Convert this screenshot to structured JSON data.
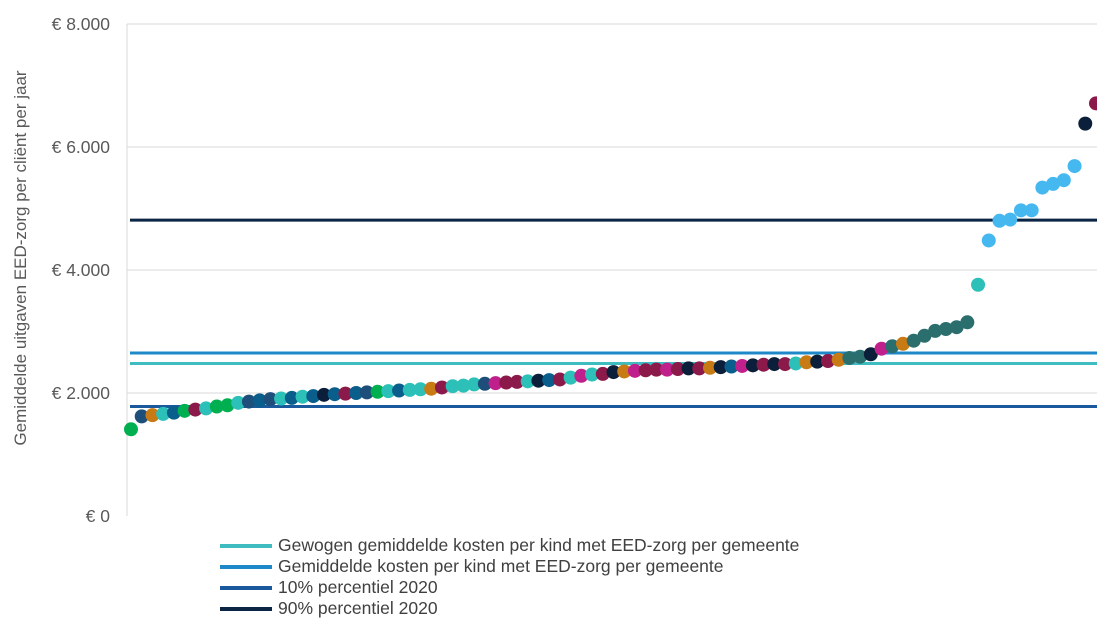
{
  "chart_data": {
    "type": "scatter",
    "title": "",
    "xlabel": "",
    "ylabel": "Gemiddelde  uitgaven EED-zorg per cliënt per jaar",
    "ylim": [
      0,
      8000
    ],
    "yticks": [
      {
        "value": 0,
        "label": "€ 0"
      },
      {
        "value": 2000,
        "label": "€ 2.000"
      },
      {
        "value": 4000,
        "label": "€ 4.000"
      },
      {
        "value": 6000,
        "label": "€ 6.000"
      },
      {
        "value": 8000,
        "label": "€ 8.000"
      }
    ],
    "grid": true,
    "legend_position": "bottom",
    "reference_lines": [
      {
        "name": "Gewogen gemiddelde kosten per kind met EED-zorg per gemeente",
        "value": 2480,
        "color": "#3fbcc0"
      },
      {
        "name": "Gemiddelde kosten per kind met EED-zorg per gemeente",
        "value": 2650,
        "color": "#1e88c8"
      },
      {
        "name": "10% percentiel 2020",
        "value": 1780,
        "color": "#1a5a9c"
      },
      {
        "name": "90% percentiel 2020",
        "value": 4810,
        "color": "#0b2545"
      }
    ],
    "point_colors": [
      "#00b050",
      "#1d4f7a",
      "#c87a14",
      "#2cc0b8",
      "#0a5e8c",
      "#8b1a4a",
      "#c0208c",
      "#0b1f3a",
      "#2b6e6e",
      "#46b8f0"
    ],
    "points": [
      {
        "y": 1410,
        "c": 0
      },
      {
        "y": 1620,
        "c": 1
      },
      {
        "y": 1640,
        "c": 2
      },
      {
        "y": 1660,
        "c": 3
      },
      {
        "y": 1680,
        "c": 4
      },
      {
        "y": 1710,
        "c": 0
      },
      {
        "y": 1730,
        "c": 5
      },
      {
        "y": 1750,
        "c": 3
      },
      {
        "y": 1780,
        "c": 0
      },
      {
        "y": 1800,
        "c": 0
      },
      {
        "y": 1840,
        "c": 3
      },
      {
        "y": 1860,
        "c": 1
      },
      {
        "y": 1880,
        "c": 4
      },
      {
        "y": 1900,
        "c": 1
      },
      {
        "y": 1910,
        "c": 3
      },
      {
        "y": 1920,
        "c": 4
      },
      {
        "y": 1940,
        "c": 3
      },
      {
        "y": 1950,
        "c": 4
      },
      {
        "y": 1970,
        "c": 7
      },
      {
        "y": 1980,
        "c": 4
      },
      {
        "y": 1990,
        "c": 5
      },
      {
        "y": 2000,
        "c": 4
      },
      {
        "y": 2010,
        "c": 1
      },
      {
        "y": 2020,
        "c": 0
      },
      {
        "y": 2030,
        "c": 3
      },
      {
        "y": 2040,
        "c": 4
      },
      {
        "y": 2050,
        "c": 3
      },
      {
        "y": 2060,
        "c": 3
      },
      {
        "y": 2070,
        "c": 2
      },
      {
        "y": 2090,
        "c": 5
      },
      {
        "y": 2110,
        "c": 3
      },
      {
        "y": 2120,
        "c": 3
      },
      {
        "y": 2140,
        "c": 3
      },
      {
        "y": 2150,
        "c": 1
      },
      {
        "y": 2160,
        "c": 6
      },
      {
        "y": 2170,
        "c": 5
      },
      {
        "y": 2180,
        "c": 5
      },
      {
        "y": 2190,
        "c": 3
      },
      {
        "y": 2200,
        "c": 7
      },
      {
        "y": 2210,
        "c": 4
      },
      {
        "y": 2220,
        "c": 5
      },
      {
        "y": 2250,
        "c": 3
      },
      {
        "y": 2280,
        "c": 6
      },
      {
        "y": 2300,
        "c": 3
      },
      {
        "y": 2310,
        "c": 5
      },
      {
        "y": 2340,
        "c": 7
      },
      {
        "y": 2350,
        "c": 2
      },
      {
        "y": 2360,
        "c": 6
      },
      {
        "y": 2370,
        "c": 5
      },
      {
        "y": 2380,
        "c": 5
      },
      {
        "y": 2380,
        "c": 6
      },
      {
        "y": 2390,
        "c": 5
      },
      {
        "y": 2400,
        "c": 7
      },
      {
        "y": 2400,
        "c": 5
      },
      {
        "y": 2410,
        "c": 2
      },
      {
        "y": 2420,
        "c": 7
      },
      {
        "y": 2430,
        "c": 4
      },
      {
        "y": 2440,
        "c": 6
      },
      {
        "y": 2450,
        "c": 7
      },
      {
        "y": 2460,
        "c": 5
      },
      {
        "y": 2470,
        "c": 7
      },
      {
        "y": 2470,
        "c": 5
      },
      {
        "y": 2480,
        "c": 3
      },
      {
        "y": 2500,
        "c": 2
      },
      {
        "y": 2510,
        "c": 7
      },
      {
        "y": 2520,
        "c": 5
      },
      {
        "y": 2540,
        "c": 2
      },
      {
        "y": 2570,
        "c": 8
      },
      {
        "y": 2590,
        "c": 8
      },
      {
        "y": 2630,
        "c": 7
      },
      {
        "y": 2720,
        "c": 6
      },
      {
        "y": 2760,
        "c": 8
      },
      {
        "y": 2800,
        "c": 2
      },
      {
        "y": 2850,
        "c": 8
      },
      {
        "y": 2930,
        "c": 8
      },
      {
        "y": 3010,
        "c": 8
      },
      {
        "y": 3040,
        "c": 8
      },
      {
        "y": 3070,
        "c": 8
      },
      {
        "y": 3150,
        "c": 8
      },
      {
        "y": 3760,
        "c": 3
      },
      {
        "y": 4480,
        "c": 9
      },
      {
        "y": 4800,
        "c": 9
      },
      {
        "y": 4820,
        "c": 9
      },
      {
        "y": 4970,
        "c": 9
      },
      {
        "y": 4970,
        "c": 9
      },
      {
        "y": 5340,
        "c": 9
      },
      {
        "y": 5400,
        "c": 9
      },
      {
        "y": 5460,
        "c": 9
      },
      {
        "y": 5690,
        "c": 9
      },
      {
        "y": 6380,
        "c": 7
      },
      {
        "y": 6710,
        "c": 5
      }
    ]
  }
}
